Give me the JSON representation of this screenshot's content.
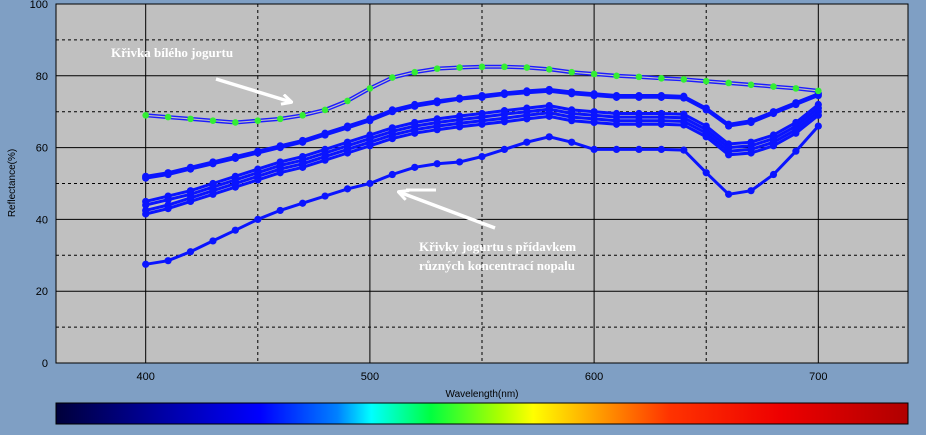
{
  "colors": {
    "page_bg": "#7f9fc4",
    "plot_bg": "#c0c0c0",
    "white_curve": "#1c1cff",
    "white_curve_markers": "#33ee33",
    "additive_curves": "#0a14ff",
    "annotation_text": "#ffffff"
  },
  "chart_data": {
    "type": "line",
    "xlabel": "Wavelength(nm)",
    "ylabel": "Reflectance(%)",
    "xlim": [
      360,
      740
    ],
    "ylim": [
      0,
      100
    ],
    "xticks": [
      400,
      500,
      600,
      700
    ],
    "yticks": [
      0,
      20,
      40,
      60,
      80,
      100
    ],
    "grid": true,
    "series_x": [
      400,
      410,
      420,
      430,
      440,
      450,
      460,
      470,
      480,
      490,
      500,
      510,
      520,
      530,
      540,
      550,
      560,
      570,
      580,
      590,
      600,
      610,
      620,
      630,
      640,
      650,
      660,
      670,
      680,
      690,
      700
    ],
    "series": [
      {
        "values": [
          69,
          68.5,
          68,
          67.5,
          67,
          67.5,
          68,
          69,
          70.5,
          73,
          76.5,
          79.5,
          81,
          82,
          82.3,
          82.5,
          82.5,
          82.3,
          81.8,
          81,
          80.5,
          80,
          79.7,
          79.3,
          79,
          78.5,
          78,
          77.5,
          77,
          76.5,
          75.8
        ]
      },
      {
        "values": [
          52,
          53,
          54.5,
          56,
          57.5,
          59,
          60.5,
          62,
          64,
          66,
          68,
          70.5,
          72,
          73,
          73.8,
          74.5,
          75.2,
          75.8,
          76.2,
          75.5,
          75,
          74.5,
          74.5,
          74.5,
          74.3,
          71,
          66.5,
          67.5,
          70,
          72.5,
          75
        ]
      },
      {
        "values": [
          51.5,
          52.5,
          54,
          55.5,
          57,
          58.5,
          60,
          61.5,
          63.5,
          65.5,
          67.5,
          70,
          71.5,
          72.5,
          73.5,
          74,
          74.8,
          75.3,
          75.7,
          75,
          74.5,
          74,
          74,
          74,
          73.8,
          70.5,
          66,
          67,
          69.5,
          72,
          74.5
        ]
      },
      {
        "values": [
          45,
          46.5,
          48,
          50,
          52,
          54,
          56,
          57.5,
          59.5,
          61.5,
          63.5,
          65.5,
          67,
          68,
          68.8,
          69.5,
          70.3,
          71,
          71.7,
          70.5,
          70,
          69.5,
          69.5,
          69.5,
          69.3,
          66,
          61,
          61.5,
          63.5,
          67,
          72
        ]
      },
      {
        "values": [
          44,
          45.5,
          47,
          49,
          51,
          53,
          55,
          56.5,
          58.5,
          60.5,
          62.5,
          64.5,
          66,
          67,
          67.8,
          68.5,
          69.3,
          70,
          70.7,
          69.5,
          69,
          68.5,
          68.5,
          68.5,
          68.3,
          65,
          60,
          60.5,
          62.5,
          66,
          71
        ]
      },
      {
        "values": [
          42.5,
          44,
          46,
          48,
          50,
          52,
          54,
          55.5,
          57.5,
          59.5,
          61.5,
          63.5,
          65,
          66,
          66.8,
          67.5,
          68.2,
          69,
          69.7,
          68.5,
          68,
          67.5,
          67.5,
          67.5,
          67.3,
          64,
          59,
          59.5,
          61.5,
          65,
          70
        ]
      },
      {
        "values": [
          41.5,
          43,
          45,
          47,
          49,
          51,
          53,
          54.5,
          56.5,
          58.5,
          60.5,
          62.5,
          64,
          65,
          65.8,
          66.5,
          67.2,
          68,
          68.7,
          67.5,
          67,
          66.5,
          66.5,
          66.5,
          66.3,
          63,
          58,
          58.5,
          60.5,
          64,
          69
        ]
      },
      {
        "values": [
          27.5,
          28.5,
          31,
          34,
          37,
          40,
          42.5,
          44.5,
          46.5,
          48.5,
          50,
          52.5,
          54.5,
          55.5,
          56,
          57.5,
          59.5,
          61.5,
          63,
          61.5,
          59.5,
          59.5,
          59.5,
          59.5,
          59.3,
          53,
          47,
          48,
          52.5,
          59,
          66
        ]
      }
    ],
    "annotations": [
      {
        "text": "Křivka bílého jogurtu"
      },
      {
        "lines": [
          "Křivky jogurtu s přídavkem",
          "různých koncentrací nopalu"
        ]
      }
    ]
  }
}
